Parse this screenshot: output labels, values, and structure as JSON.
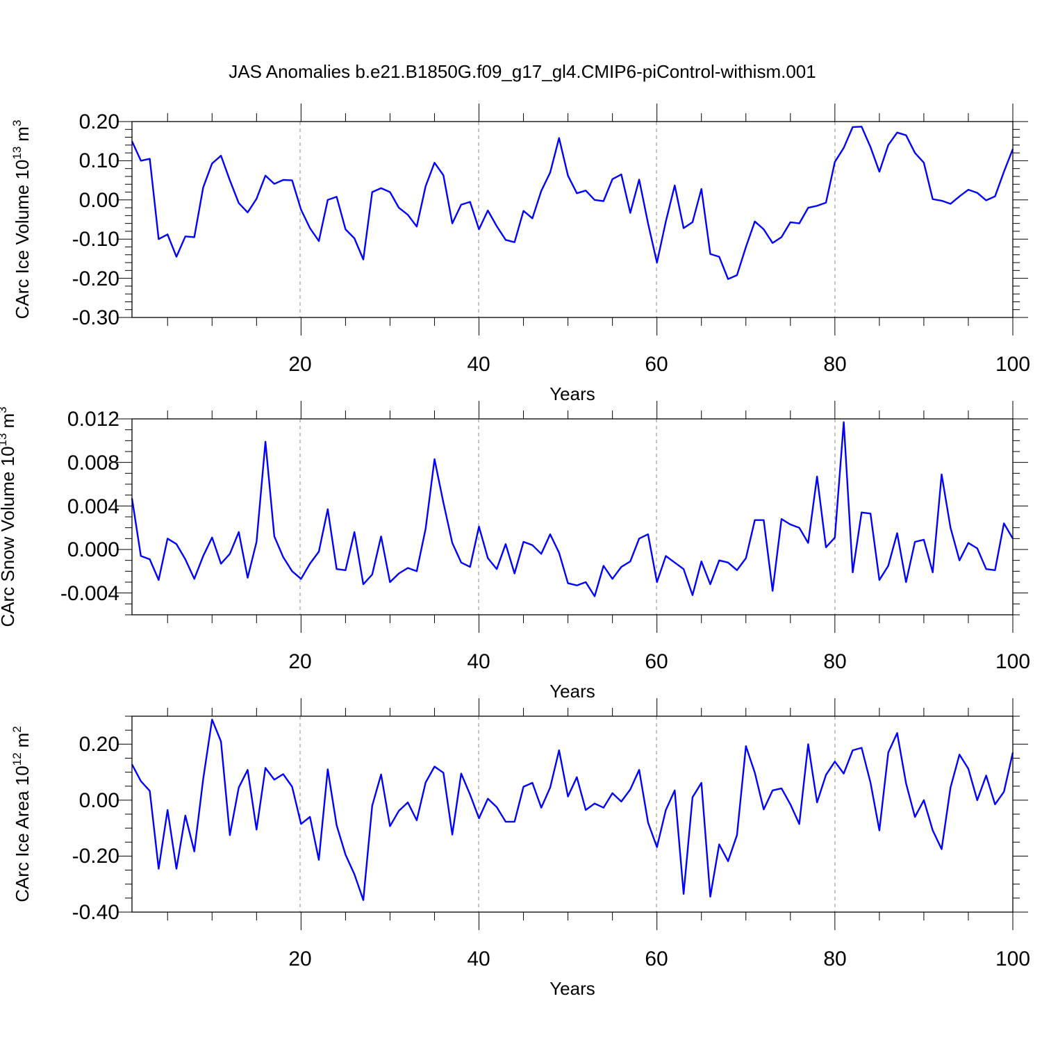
{
  "title": "JAS Anomalies b.e21.B1850G.f09_g17_gl4.CMIP6-piControl-withism.001",
  "line_color": "#0000ff",
  "chart_data": [
    {
      "type": "line",
      "ylabel_text": "CArc Ice Volume 10",
      "ylabel_exp": "13",
      "ylabel_unit": "m",
      "ylabel_unit_exp": "3",
      "xlabel": "Years",
      "xlim": [
        1,
        100
      ],
      "ylim": [
        -0.3,
        0.2
      ],
      "xticks": [
        20,
        40,
        60,
        80,
        100
      ],
      "xtick_labels": [
        "20",
        "40",
        "60",
        "80",
        "100"
      ],
      "yticks": [
        -0.3,
        -0.2,
        -0.1,
        0.0,
        0.1,
        0.2
      ],
      "ytick_labels": [
        "-0.30",
        "-0.20",
        "-0.10",
        "0.00",
        "0.10",
        "0.20"
      ],
      "yminor_step": 0.02,
      "grid_x": [
        20,
        40,
        60,
        80
      ],
      "series": [
        {
          "name": "CArc Ice Volume",
          "x_start": 1,
          "values": [
            0.15,
            0.1,
            0.105,
            -0.1,
            -0.088,
            -0.145,
            -0.093,
            -0.095,
            0.032,
            0.093,
            0.113,
            0.05,
            -0.008,
            -0.032,
            0.003,
            0.062,
            0.041,
            0.051,
            0.05,
            -0.025,
            -0.072,
            -0.105,
            0.0,
            0.008,
            -0.075,
            -0.098,
            -0.152,
            0.02,
            0.03,
            0.02,
            -0.02,
            -0.038,
            -0.068,
            0.035,
            0.095,
            0.063,
            -0.06,
            -0.012,
            -0.005,
            -0.075,
            -0.027,
            -0.067,
            -0.102,
            -0.108,
            -0.028,
            -0.047,
            0.023,
            0.07,
            0.158,
            0.062,
            0.017,
            0.024,
            0.0,
            -0.003,
            0.053,
            0.065,
            -0.033,
            0.052,
            -0.06,
            -0.16,
            -0.055,
            0.037,
            -0.072,
            -0.057,
            0.028,
            -0.138,
            -0.145,
            -0.202,
            -0.192,
            -0.12,
            -0.055,
            -0.075,
            -0.11,
            -0.095,
            -0.057,
            -0.06,
            -0.02,
            -0.015,
            -0.007,
            0.097,
            0.133,
            0.186,
            0.187,
            0.135,
            0.072,
            0.14,
            0.172,
            0.165,
            0.12,
            0.095,
            0.002,
            -0.002,
            -0.01,
            0.009,
            0.026,
            0.018,
            -0.001,
            0.009,
            0.072,
            0.13
          ]
        }
      ]
    },
    {
      "type": "line",
      "ylabel_text": "CArc Snow Volume 10",
      "ylabel_exp": "13",
      "ylabel_unit": "m",
      "ylabel_unit_exp": "3",
      "xlabel": "Years",
      "xlim": [
        1,
        100
      ],
      "ylim": [
        -0.006,
        0.012
      ],
      "xticks": [
        20,
        40,
        60,
        80,
        100
      ],
      "xtick_labels": [
        "20",
        "40",
        "60",
        "80",
        "100"
      ],
      "yticks": [
        -0.004,
        0.0,
        0.004,
        0.008,
        0.012
      ],
      "ytick_labels": [
        "-0.004",
        "0.000",
        "0.004",
        "0.008",
        "0.012"
      ],
      "yminor_step": 0.001,
      "grid_x": [
        20,
        40,
        60,
        80
      ],
      "series": [
        {
          "name": "CArc Snow Volume",
          "x_start": 1,
          "values": [
            0.0047,
            -0.0006,
            -0.0009,
            -0.0028,
            0.001,
            0.0005,
            -0.0009,
            -0.0027,
            -0.0006,
            0.0011,
            -0.0013,
            -0.0004,
            0.0016,
            -0.0026,
            0.0007,
            0.0099,
            0.0012,
            -0.0007,
            -0.002,
            -0.0027,
            -0.0013,
            -0.0002,
            0.0037,
            -0.0018,
            -0.0019,
            0.0016,
            -0.0032,
            -0.0023,
            0.0012,
            -0.003,
            -0.0022,
            -0.0017,
            -0.002,
            0.0019,
            0.0083,
            0.0043,
            0.0006,
            -0.0012,
            -0.0016,
            0.0021,
            -0.0008,
            -0.0018,
            0.0005,
            -0.0022,
            0.0007,
            0.0004,
            -0.0004,
            0.0014,
            -0.0003,
            -0.0031,
            -0.0033,
            -0.003,
            -0.0043,
            -0.0015,
            -0.0027,
            -0.0016,
            -0.0011,
            0.001,
            0.0014,
            -0.003,
            -0.0006,
            -0.0012,
            -0.0018,
            -0.0042,
            -0.0011,
            -0.0032,
            -0.001,
            -0.0012,
            -0.0019,
            -0.0008,
            0.0027,
            0.0027,
            -0.0038,
            0.0028,
            0.0023,
            0.002,
            0.0006,
            0.0067,
            0.0002,
            0.0011,
            0.0117,
            -0.0021,
            0.0034,
            0.0033,
            -0.0028,
            -0.0015,
            0.0015,
            -0.003,
            0.0007,
            0.0009,
            -0.0021,
            0.0069,
            0.002,
            -0.001,
            0.0006,
            0.0001,
            -0.0018,
            -0.0019,
            0.0024,
            0.001
          ]
        }
      ]
    },
    {
      "type": "line",
      "ylabel_text": "CArc Ice Area 10",
      "ylabel_exp": "12",
      "ylabel_unit": "m",
      "ylabel_unit_exp": "2",
      "xlabel": "Years",
      "xlim": [
        1,
        100
      ],
      "ylim": [
        -0.4,
        0.3
      ],
      "xticks": [
        20,
        40,
        60,
        80,
        100
      ],
      "xtick_labels": [
        "20",
        "40",
        "60",
        "80",
        "100"
      ],
      "yticks": [
        -0.4,
        -0.2,
        0.0,
        0.2
      ],
      "ytick_labels": [
        "-0.40",
        "-0.20",
        "0.00",
        "0.20"
      ],
      "yminor_step": 0.05,
      "grid_x": [
        20,
        40,
        60,
        80
      ],
      "series": [
        {
          "name": "CArc Ice Area",
          "x_start": 1,
          "values": [
            0.128,
            0.068,
            0.033,
            -0.245,
            -0.035,
            -0.245,
            -0.055,
            -0.183,
            0.075,
            0.288,
            0.21,
            -0.125,
            0.045,
            0.108,
            -0.105,
            0.115,
            0.073,
            0.093,
            0.048,
            -0.085,
            -0.06,
            -0.213,
            0.11,
            -0.09,
            -0.195,
            -0.265,
            -0.357,
            -0.02,
            0.092,
            -0.093,
            -0.038,
            -0.008,
            -0.072,
            0.063,
            0.12,
            0.098,
            -0.123,
            0.095,
            0.02,
            -0.065,
            0.005,
            -0.025,
            -0.077,
            -0.077,
            0.048,
            0.062,
            -0.027,
            0.045,
            0.178,
            0.013,
            0.082,
            -0.035,
            -0.012,
            -0.027,
            0.025,
            -0.005,
            0.038,
            0.108,
            -0.08,
            -0.168,
            -0.035,
            0.035,
            -0.335,
            0.01,
            0.062,
            -0.345,
            -0.158,
            -0.218,
            -0.125,
            0.193,
            0.098,
            -0.033,
            0.035,
            0.042,
            -0.015,
            -0.085,
            0.2,
            -0.008,
            0.09,
            0.138,
            0.095,
            0.178,
            0.187,
            0.063,
            -0.108,
            0.17,
            0.24,
            0.06,
            -0.06,
            0.0,
            -0.108,
            -0.175,
            0.045,
            0.163,
            0.112,
            0.0,
            0.088,
            -0.015,
            0.03,
            0.17
          ]
        }
      ]
    }
  ]
}
